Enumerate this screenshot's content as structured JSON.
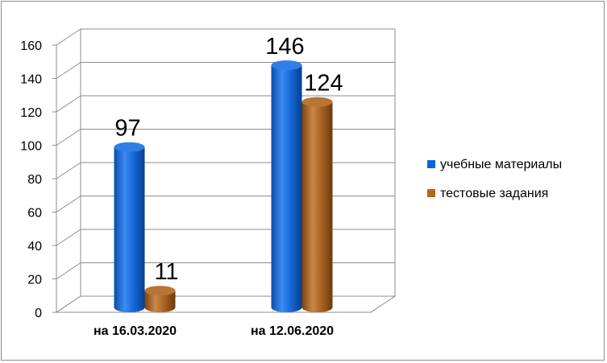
{
  "chart_data": {
    "type": "bar",
    "categories": [
      "на 16.03.2020",
      "на 12.06.2020"
    ],
    "series": [
      {
        "name": "учебные материалы",
        "values": [
          97,
          146
        ],
        "color": "#0a63d8"
      },
      {
        "name": "тестовые задания",
        "values": [
          11,
          124
        ],
        "color": "#b5651d"
      }
    ],
    "ylim": [
      0,
      160
    ],
    "yticks": [
      0,
      20,
      40,
      60,
      80,
      100,
      120,
      140,
      160
    ],
    "grid": true,
    "legend_position": "right",
    "data_labels": true,
    "style": "3d-cylinder"
  }
}
